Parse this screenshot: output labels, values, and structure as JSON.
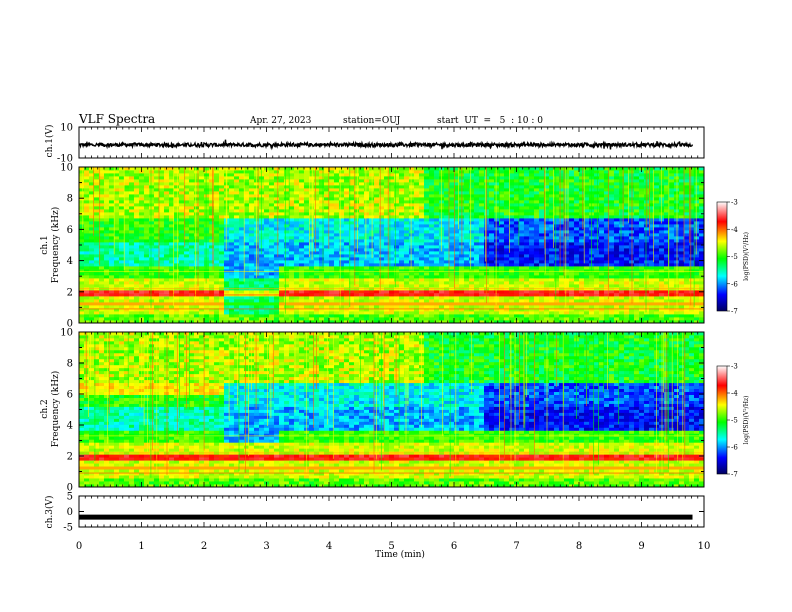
{
  "header": {
    "title": "VLF Spectra",
    "date": "Apr. 27, 2023",
    "station": "station=OUJ",
    "start": "start  UT  =   5  : 10 : 0"
  },
  "colorbar": {
    "label": "log(PSD)(V²/Hz)",
    "ticks": [
      "-3",
      "-4",
      "-5",
      "-6",
      "-7"
    ],
    "colors": [
      "#ffffff",
      "#ff0000",
      "#ffff00",
      "#00ff00",
      "#00ffff",
      "#0000ff",
      "#000060"
    ]
  },
  "chart_data": [
    {
      "type": "line",
      "panel": "ch1-waveform",
      "ylabel": "ch.1(V)",
      "ylim": [
        -10,
        10
      ],
      "yticks": [
        "10",
        "-10"
      ],
      "xlim": [
        0,
        10
      ],
      "description_values": {
        "mean": -1.5,
        "band_half_width": 1.2
      }
    },
    {
      "type": "heatmap",
      "panel": "ch1-spectrogram",
      "title": "ch.1",
      "ylabel": "Frequency (kHz)",
      "ylim": [
        0,
        10
      ],
      "yticks": [
        "0",
        "2",
        "4",
        "6",
        "8",
        "10"
      ],
      "xlim": [
        0,
        10
      ],
      "zlim": [
        -7,
        -3
      ]
    },
    {
      "type": "heatmap",
      "panel": "ch2-spectrogram",
      "title": "ch.2",
      "ylabel": "Frequency (kHz)",
      "ylim": [
        0,
        10
      ],
      "yticks": [
        "0",
        "2",
        "4",
        "6",
        "8",
        "10"
      ],
      "xlim": [
        0,
        10
      ],
      "zlim": [
        -7,
        -3
      ]
    },
    {
      "type": "line",
      "panel": "ch3-waveform",
      "ylabel": "ch.3(V)",
      "ylim": [
        -5,
        5
      ],
      "yticks": [
        "5",
        "0",
        "-5"
      ],
      "xlim": [
        0,
        10
      ],
      "description_values": {
        "mean": -1.8
      }
    }
  ],
  "xaxis": {
    "label": "Time (min)",
    "ticks": [
      "0",
      "1",
      "2",
      "3",
      "4",
      "5",
      "6",
      "7",
      "8",
      "9",
      "10"
    ]
  }
}
